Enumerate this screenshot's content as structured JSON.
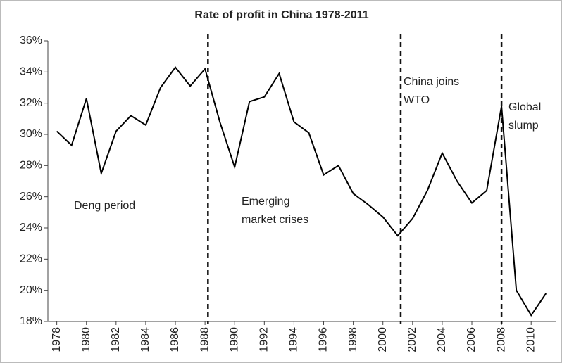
{
  "chart_data": {
    "type": "line",
    "title": "Rate of profit in China 1978-2011",
    "x": [
      1978,
      1979,
      1980,
      1981,
      1982,
      1983,
      1984,
      1985,
      1986,
      1987,
      1988,
      1989,
      1990,
      1991,
      1992,
      1993,
      1994,
      1995,
      1996,
      1997,
      1998,
      1999,
      2000,
      2001,
      2002,
      2003,
      2004,
      2005,
      2006,
      2007,
      2008,
      2009,
      2010,
      2011
    ],
    "series": [
      {
        "name": "Rate of profit",
        "color": "#000000",
        "values": [
          30.2,
          29.3,
          32.3,
          27.5,
          30.2,
          31.2,
          30.6,
          33.0,
          34.3,
          33.1,
          34.2,
          30.8,
          27.9,
          32.1,
          32.4,
          33.9,
          30.8,
          30.1,
          27.4,
          28.0,
          26.2,
          25.5,
          24.7,
          23.5,
          24.6,
          26.4,
          28.8,
          27.0,
          25.6,
          26.4,
          31.8,
          20.0,
          18.4,
          19.8
        ]
      }
    ],
    "xlim": [
      1977.4,
      2011.7
    ],
    "xticks": [
      1978,
      1980,
      1982,
      1984,
      1986,
      1988,
      1990,
      1992,
      1994,
      1996,
      1998,
      2000,
      2002,
      2004,
      2006,
      2008,
      2010
    ],
    "ylim": [
      18,
      36
    ],
    "yticks": [
      {
        "value": 18,
        "label": "18%"
      },
      {
        "value": 20,
        "label": "20%"
      },
      {
        "value": 22,
        "label": "22%"
      },
      {
        "value": 24,
        "label": "24%"
      },
      {
        "value": 26,
        "label": "26%"
      },
      {
        "value": 28,
        "label": "28%"
      },
      {
        "value": 30,
        "label": "30%"
      },
      {
        "value": 32,
        "label": "32%"
      },
      {
        "value": 34,
        "label": "34%"
      },
      {
        "value": 36,
        "label": "36%"
      }
    ],
    "grid": false,
    "vlines": [
      1988.2,
      2001.2,
      2008.0
    ],
    "annotations": [
      [
        "Deng period"
      ],
      [
        "Emerging",
        "market crises"
      ],
      [
        "China joins",
        "WTO"
      ],
      [
        "Global",
        "slump"
      ]
    ]
  }
}
